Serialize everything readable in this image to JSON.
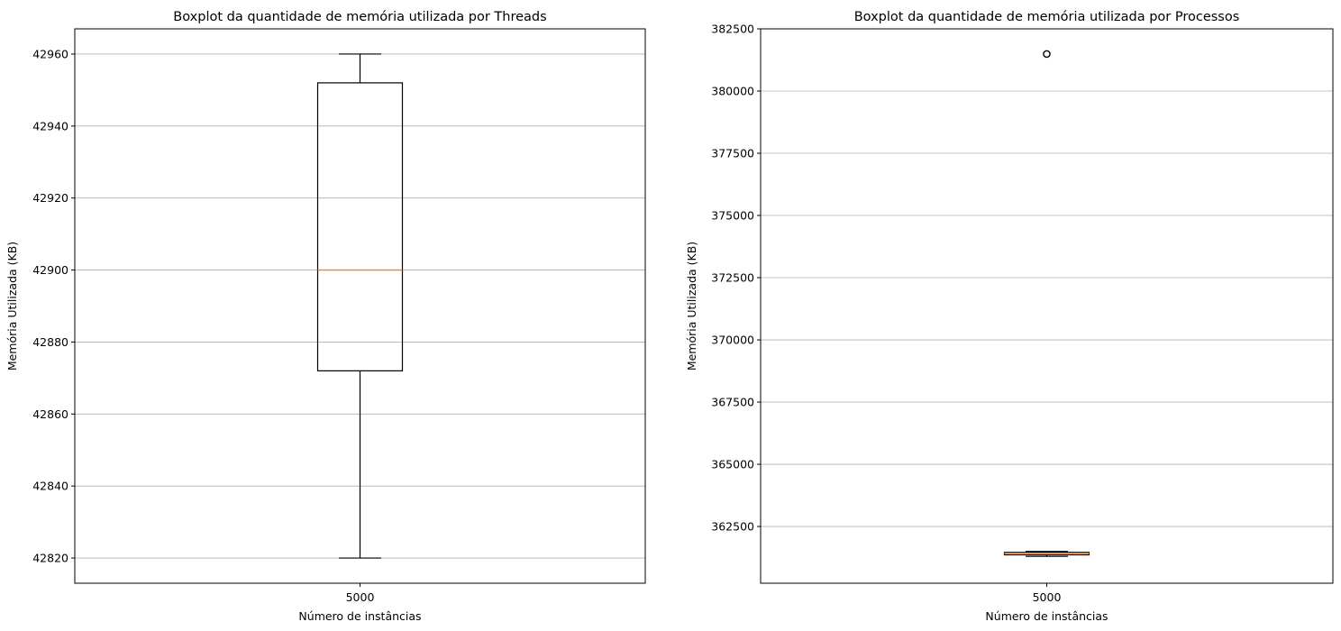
{
  "chart_data": [
    {
      "type": "boxplot",
      "title": "Boxplot da quantidade de memória utilizada por Threads",
      "xlabel": "Número de instâncias",
      "ylabel": "Memória Utilizada (KB)",
      "categories": [
        "5000"
      ],
      "ylim": [
        42813,
        42967
      ],
      "yticks": [
        42820,
        42840,
        42860,
        42880,
        42900,
        42920,
        42940,
        42960
      ],
      "grid": "y",
      "boxes": [
        {
          "category": "5000",
          "whisker_low": 42820,
          "q1": 42872,
          "median": 42900,
          "q3": 42952,
          "whisker_high": 42960,
          "outliers": []
        }
      ]
    },
    {
      "type": "boxplot",
      "title": "Boxplot da quantidade de memória utilizada por Processos",
      "xlabel": "Número de instâncias",
      "ylabel": "Memória Utilizada (KB)",
      "categories": [
        "5000"
      ],
      "ylim": [
        360220,
        382500
      ],
      "yticks": [
        362500,
        365000,
        367500,
        370000,
        372500,
        375000,
        377500,
        380000,
        382500
      ],
      "grid": "y",
      "boxes": [
        {
          "category": "5000",
          "whisker_low": 361300,
          "q1": 361360,
          "median": 361420,
          "q3": 361460,
          "whisker_high": 361500,
          "outliers": [
            381490
          ]
        }
      ]
    }
  ],
  "colors": {
    "box": "#000000",
    "median": "#ff7f0e",
    "grid": "#b0b0b0",
    "frame": "#000000",
    "outlier": "#000000"
  }
}
